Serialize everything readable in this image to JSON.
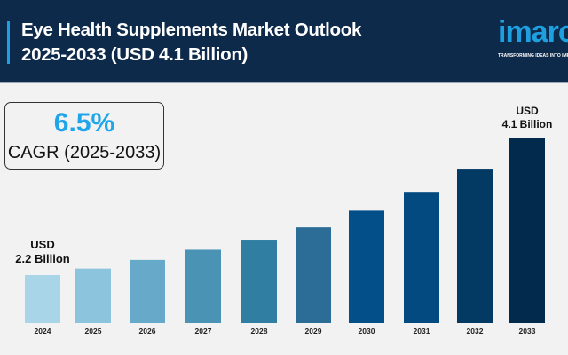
{
  "header": {
    "title_line1": "Eye Health Supplements Market Outlook",
    "title_line2": "2025-2033 (USD 4.1 Billion)"
  },
  "logo": {
    "text": "imarc",
    "tagline": "TRANSFORMING IDEAS INTO IMPACT"
  },
  "cagr": {
    "value": "6.5%",
    "label": "CAGR (2025-2033)"
  },
  "annotations": {
    "start_line1": "USD",
    "start_line2": "2.2 Billion",
    "end_line1": "USD",
    "end_line2": "4.1 Billion"
  },
  "chart_data": {
    "type": "bar",
    "categories": [
      "2024",
      "2025",
      "2026",
      "2027",
      "2028",
      "2029",
      "2030",
      "2031",
      "2032",
      "2033"
    ],
    "values": [
      2.2,
      2.29,
      2.41,
      2.55,
      2.69,
      2.86,
      3.09,
      3.35,
      3.67,
      4.1
    ],
    "unit": "USD Billion",
    "colors": [
      "#a8d5e8",
      "#8cc3dd",
      "#67a9c8",
      "#4a93b4",
      "#307fa3",
      "#2b6d97",
      "#034f89",
      "#024a80",
      "#033a64",
      "#022a4c"
    ],
    "grid": false,
    "legend": "none"
  }
}
